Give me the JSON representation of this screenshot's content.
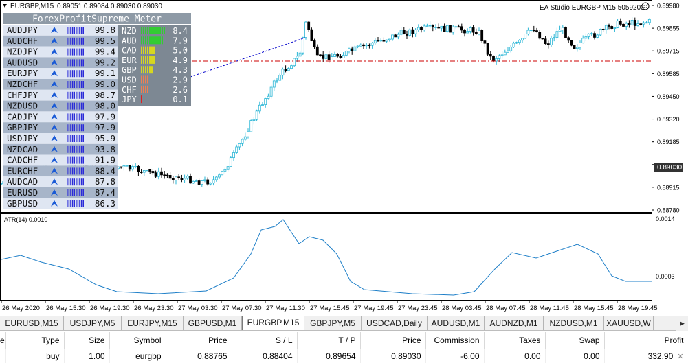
{
  "chart": {
    "symbol_header": "EURGBP,M15",
    "ohlc": "0.89051 0.89084 0.89030 0.89030",
    "ea_label": "EA Studio EURGBP M15 50592037",
    "smiley_icon": "smiley-icon",
    "current_price": "0.89030",
    "price_axis": [
      "0.89980",
      "0.89855",
      "0.89715",
      "0.89585",
      "0.89450",
      "0.89320",
      "0.89185",
      "0.89050",
      "0.88915",
      "0.88780"
    ],
    "colors": {
      "bull_candle": "#2ab6d6",
      "bear_candle": "#000000",
      "stop_line": "#cc0000",
      "trade_link": "#0000cc",
      "atr_line": "#1e7fc8",
      "bid_box": "#333333"
    }
  },
  "meter": {
    "title": "ForexProfitSupreme Meter",
    "arrow_icon": "up-arrow-icon",
    "pairs": [
      {
        "name": "AUDJPY",
        "value": "99.8"
      },
      {
        "name": "AUDCHF",
        "value": "99.5"
      },
      {
        "name": "NZDJPY",
        "value": "99.4"
      },
      {
        "name": "AUDUSD",
        "value": "99.2"
      },
      {
        "name": "EURJPY",
        "value": "99.1"
      },
      {
        "name": "NZDCHF",
        "value": "99.0"
      },
      {
        "name": "CHFJPY",
        "value": "98.7"
      },
      {
        "name": "NZDUSD",
        "value": "98.0"
      },
      {
        "name": "CADJPY",
        "value": "97.9"
      },
      {
        "name": "GBPJPY",
        "value": "97.9"
      },
      {
        "name": "USDJPY",
        "value": "95.9"
      },
      {
        "name": "NZDCAD",
        "value": "93.8"
      },
      {
        "name": "CADCHF",
        "value": "91.9"
      },
      {
        "name": "EURCHF",
        "value": "88.4"
      },
      {
        "name": "AUDCAD",
        "value": "87.8"
      },
      {
        "name": "EURUSD",
        "value": "87.4"
      },
      {
        "name": "GBPUSD",
        "value": "86.3"
      }
    ],
    "currencies": [
      {
        "name": "NZD",
        "value": "8.4",
        "color": "#33cc33"
      },
      {
        "name": "AUD",
        "value": "7.9",
        "color": "#33cc33"
      },
      {
        "name": "CAD",
        "value": "5.0",
        "color": "#d7d720"
      },
      {
        "name": "EUR",
        "value": "4.9",
        "color": "#d7d720"
      },
      {
        "name": "GBP",
        "value": "4.3",
        "color": "#d7d720"
      },
      {
        "name": "USD",
        "value": "2.9",
        "color": "#f08050"
      },
      {
        "name": "CHF",
        "value": "2.6",
        "color": "#f08050"
      },
      {
        "name": "JPY",
        "value": "0.1",
        "color": "#e02020"
      }
    ]
  },
  "atr": {
    "label": "ATR(14) 0.0010",
    "axis_top": "0.0014",
    "axis_bottom": "0.0003"
  },
  "time_axis": [
    "26 May 2020",
    "26 May 15:30",
    "26 May 19:30",
    "26 May 23:30",
    "27 May 03:30",
    "27 May 07:30",
    "27 May 11:30",
    "27 May 15:45",
    "27 May 19:45",
    "27 May 23:45",
    "28 May 03:45",
    "28 May 07:45",
    "28 May 11:45",
    "28 May 15:45",
    "28 May 19:45"
  ],
  "tabs": [
    {
      "label": "EURUSD,M15",
      "active": false
    },
    {
      "label": "USDJPY,M5",
      "active": false
    },
    {
      "label": "EURJPY,M15",
      "active": false
    },
    {
      "label": "GBPUSD,M1",
      "active": false
    },
    {
      "label": "EURGBP,M15",
      "active": true
    },
    {
      "label": "GBPJPY,M5",
      "active": false
    },
    {
      "label": "USDCAD,Daily",
      "active": false
    },
    {
      "label": "AUDUSD,M1",
      "active": false
    },
    {
      "label": "AUDNZD,M1",
      "active": false
    },
    {
      "label": "NZDUSD,M1",
      "active": false
    },
    {
      "label": "XAUUSD,W",
      "active": false
    }
  ],
  "tab_scroll_icon": "chevron-right-icon",
  "trades": {
    "headers": [
      "e",
      "Type",
      "Size",
      "Symbol",
      "Price",
      "S / L",
      "T / P",
      "Price",
      "Commission",
      "Taxes",
      "Swap",
      "Profit"
    ],
    "rows": [
      [
        "",
        "buy",
        "1.00",
        "eurgbp",
        "0.88765",
        "0.88404",
        "0.89654",
        "0.89030",
        "-6.00",
        "0.00",
        "0.00",
        "332.90"
      ]
    ]
  }
}
